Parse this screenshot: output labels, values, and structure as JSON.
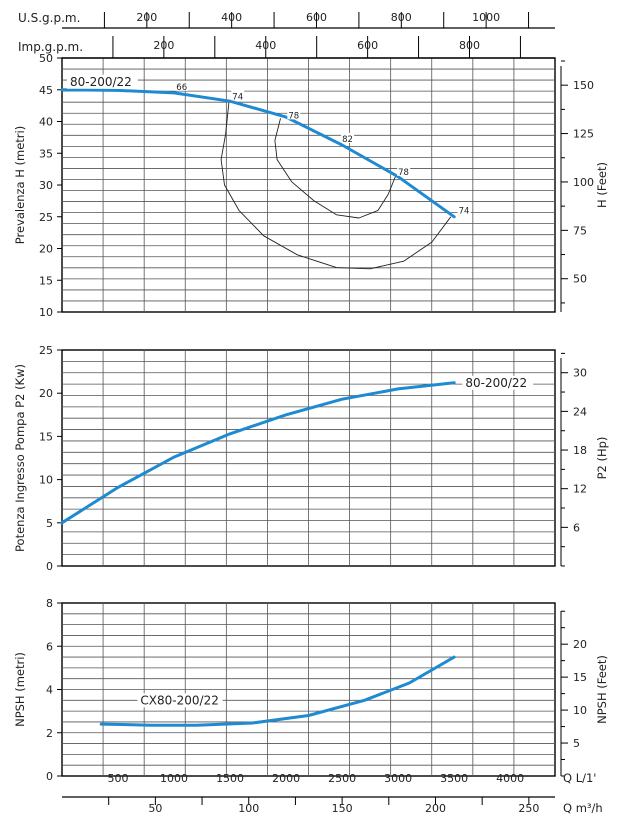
{
  "chart_data": [
    {
      "type": "line",
      "panel": "head",
      "ylabel": "Prevalenza H (metri)",
      "y2label": "H (Feet)",
      "ylim": [
        10,
        50
      ],
      "yticks": [
        10,
        15,
        20,
        25,
        30,
        35,
        40,
        45,
        50
      ],
      "y2ticks": [
        50,
        75,
        100,
        125,
        150
      ],
      "xlim": [
        0,
        4400
      ],
      "grid": true,
      "series": [
        {
          "name": "80-200/22",
          "x": [
            0,
            500,
            1000,
            1500,
            2000,
            2500,
            3000,
            3500
          ],
          "y": [
            45,
            44.9,
            44.5,
            43.2,
            40.7,
            36.3,
            31.3,
            25.0
          ]
        }
      ],
      "efficiency_labels": [
        {
          "text": "66",
          "x": 1020,
          "y": 45
        },
        {
          "text": "74",
          "x": 1520,
          "y": 43.5
        },
        {
          "text": "78",
          "x": 2020,
          "y": 40.5
        },
        {
          "text": "82",
          "x": 2500,
          "y": 36.8
        },
        {
          "text": "78",
          "x": 3000,
          "y": 31.6
        },
        {
          "text": "74",
          "x": 3540,
          "y": 25.5
        }
      ],
      "iso_efficiency_loops": [
        {
          "x": [
            1490,
            1460,
            1420,
            1450,
            1580,
            1800,
            2100,
            2450,
            2750,
            3050,
            3300,
            3470
          ],
          "y": [
            43.0,
            38.0,
            34.0,
            30.0,
            26.0,
            22.0,
            19.0,
            17.0,
            16.8,
            18.0,
            21.0,
            25.0
          ]
        },
        {
          "x": [
            1950,
            1900,
            1920,
            2050,
            2250,
            2450,
            2650,
            2820,
            2910,
            2980
          ],
          "y": [
            40.5,
            37.0,
            34.0,
            30.5,
            27.5,
            25.3,
            24.8,
            26.0,
            28.5,
            31.5
          ]
        }
      ]
    },
    {
      "type": "line",
      "panel": "power",
      "ylabel": "Potenza Ingresso Pompa P2 (Kw)",
      "y2label": "P2 (Hp)",
      "ylim": [
        0,
        25
      ],
      "yticks": [
        0,
        5,
        10,
        15,
        20,
        25
      ],
      "y2ticks": [
        6,
        12,
        18,
        24,
        30
      ],
      "xlim": [
        0,
        4400
      ],
      "grid": true,
      "series": [
        {
          "name": "80-200/22",
          "x": [
            0,
            500,
            1000,
            1500,
            2000,
            2500,
            3000,
            3500
          ],
          "y": [
            5.0,
            9.1,
            12.6,
            15.3,
            17.5,
            19.3,
            20.5,
            21.2
          ]
        }
      ]
    },
    {
      "type": "line",
      "panel": "npsh",
      "ylabel": "NPSH (metri)",
      "y2label": "NPSH (Feet)",
      "ylim": [
        0,
        8
      ],
      "yticks": [
        0,
        2,
        4,
        6,
        8
      ],
      "y2ticks": [
        5,
        10,
        15,
        20
      ],
      "xlim": [
        0,
        4400
      ],
      "xlabel": "Q L/1'",
      "x2label": "Q m³/h",
      "xticks": [
        500,
        1000,
        1500,
        2000,
        2500,
        3000,
        3500,
        4000
      ],
      "x2ticks": [
        50,
        100,
        150,
        200,
        250
      ],
      "top_axis_usgpm_label": "U.S.g.p.m.",
      "top_axis_usgpm_ticks": [
        200,
        400,
        600,
        800,
        1000
      ],
      "top_axis_impgpm_label": "Imp.g.p.m.",
      "top_axis_impgpm_ticks": [
        200,
        400,
        600,
        800
      ],
      "grid": true,
      "series": [
        {
          "name": "CX80-200/22",
          "x": [
            350,
            800,
            1200,
            1700,
            2200,
            2700,
            3100,
            3500
          ],
          "y": [
            2.4,
            2.35,
            2.35,
            2.45,
            2.8,
            3.5,
            4.3,
            5.5
          ]
        }
      ]
    }
  ]
}
